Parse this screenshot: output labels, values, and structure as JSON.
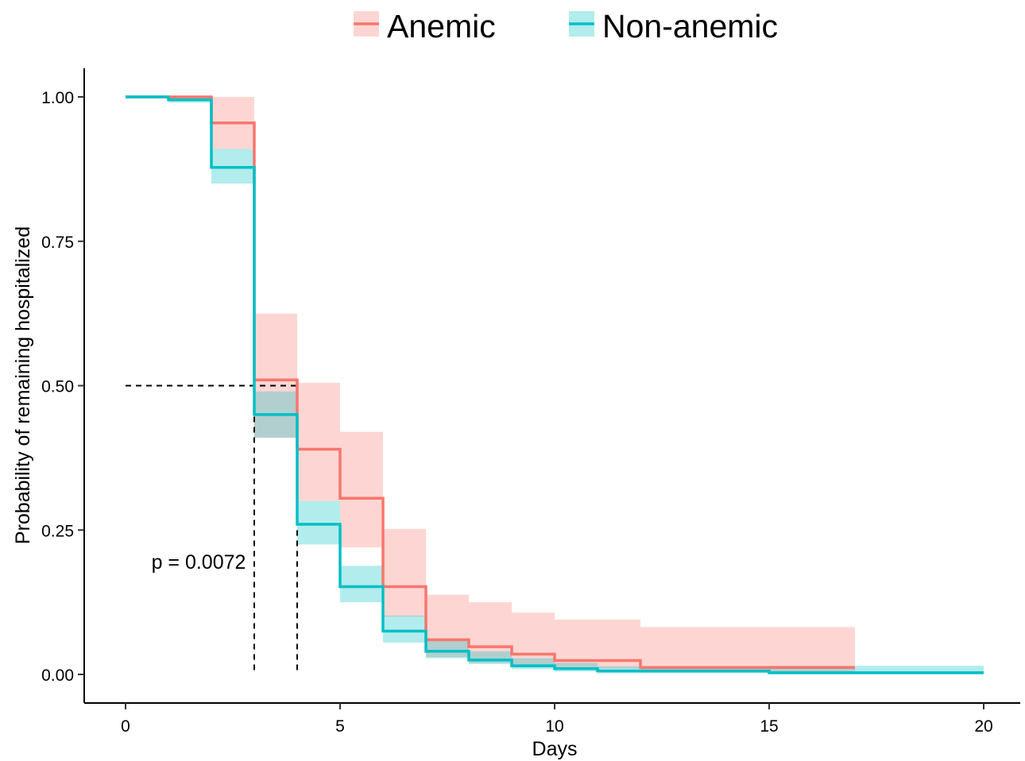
{
  "chart_data": {
    "type": "line",
    "subtype": "kaplan-meier-step-with-confidence-bands",
    "xlabel": "Days",
    "ylabel": "Probability of remaining hospitalized",
    "xlim": [
      -1,
      21
    ],
    "ylim": [
      -0.05,
      1.05
    ],
    "x_ticks": [
      0,
      5,
      10,
      15,
      20
    ],
    "x_tick_labels": [
      "0",
      "5",
      "10",
      "15",
      "20"
    ],
    "y_ticks": [
      0,
      0.25,
      0.5,
      0.75,
      1.0
    ],
    "y_tick_labels": [
      "0.00",
      "0.25",
      "0.50",
      "0.75",
      "1.00"
    ],
    "grid": false,
    "legend_position": "top",
    "annotation": "p = 0.0072",
    "median_line_y": 0.5,
    "median_x": [
      3,
      4
    ],
    "series": [
      {
        "name": "Anemic",
        "color": "#F8766D",
        "band_color": "#F8766D",
        "steps": [
          {
            "x0": 0,
            "x1": 1,
            "y": 1.0,
            "lo": 1.0,
            "hi": 1.0
          },
          {
            "x0": 1,
            "x1": 2,
            "y": 1.0,
            "lo": 1.0,
            "hi": 1.0
          },
          {
            "x0": 2,
            "x1": 3,
            "y": 0.955,
            "lo": 0.91,
            "hi": 1.0
          },
          {
            "x0": 3,
            "x1": 4,
            "y": 0.51,
            "lo": 0.41,
            "hi": 0.625
          },
          {
            "x0": 4,
            "x1": 5,
            "y": 0.39,
            "lo": 0.3,
            "hi": 0.505
          },
          {
            "x0": 5,
            "x1": 6,
            "y": 0.305,
            "lo": 0.22,
            "hi": 0.42
          },
          {
            "x0": 6,
            "x1": 7,
            "y": 0.152,
            "lo": 0.1,
            "hi": 0.252
          },
          {
            "x0": 7,
            "x1": 8,
            "y": 0.06,
            "lo": 0.03,
            "hi": 0.138
          },
          {
            "x0": 8,
            "x1": 9,
            "y": 0.048,
            "lo": 0.02,
            "hi": 0.125
          },
          {
            "x0": 9,
            "x1": 10,
            "y": 0.035,
            "lo": 0.015,
            "hi": 0.107
          },
          {
            "x0": 10,
            "x1": 12,
            "y": 0.024,
            "lo": 0.01,
            "hi": 0.095
          },
          {
            "x0": 12,
            "x1": 17,
            "y": 0.012,
            "lo": 0.003,
            "hi": 0.082
          }
        ]
      },
      {
        "name": "Non-anemic",
        "color": "#00BFC4",
        "band_color": "#00BFC4",
        "steps": [
          {
            "x0": 0,
            "x1": 1,
            "y": 1.0,
            "lo": 1.0,
            "hi": 1.0
          },
          {
            "x0": 1,
            "x1": 2,
            "y": 0.995,
            "lo": 0.99,
            "hi": 1.0
          },
          {
            "x0": 2,
            "x1": 3,
            "y": 0.878,
            "lo": 0.85,
            "hi": 0.91
          },
          {
            "x0": 3,
            "x1": 4,
            "y": 0.45,
            "lo": 0.41,
            "hi": 0.49
          },
          {
            "x0": 4,
            "x1": 5,
            "y": 0.26,
            "lo": 0.225,
            "hi": 0.3
          },
          {
            "x0": 5,
            "x1": 6,
            "y": 0.152,
            "lo": 0.125,
            "hi": 0.188
          },
          {
            "x0": 6,
            "x1": 7,
            "y": 0.075,
            "lo": 0.055,
            "hi": 0.102
          },
          {
            "x0": 7,
            "x1": 8,
            "y": 0.04,
            "lo": 0.028,
            "hi": 0.06
          },
          {
            "x0": 8,
            "x1": 9,
            "y": 0.025,
            "lo": 0.018,
            "hi": 0.04
          },
          {
            "x0": 9,
            "x1": 10,
            "y": 0.015,
            "lo": 0.009,
            "hi": 0.028
          },
          {
            "x0": 10,
            "x1": 11,
            "y": 0.01,
            "lo": 0.005,
            "hi": 0.02
          },
          {
            "x0": 11,
            "x1": 15,
            "y": 0.006,
            "lo": 0.002,
            "hi": 0.014
          },
          {
            "x0": 15,
            "x1": 20,
            "y": 0.003,
            "lo": 0.0,
            "hi": 0.015
          }
        ]
      }
    ]
  }
}
